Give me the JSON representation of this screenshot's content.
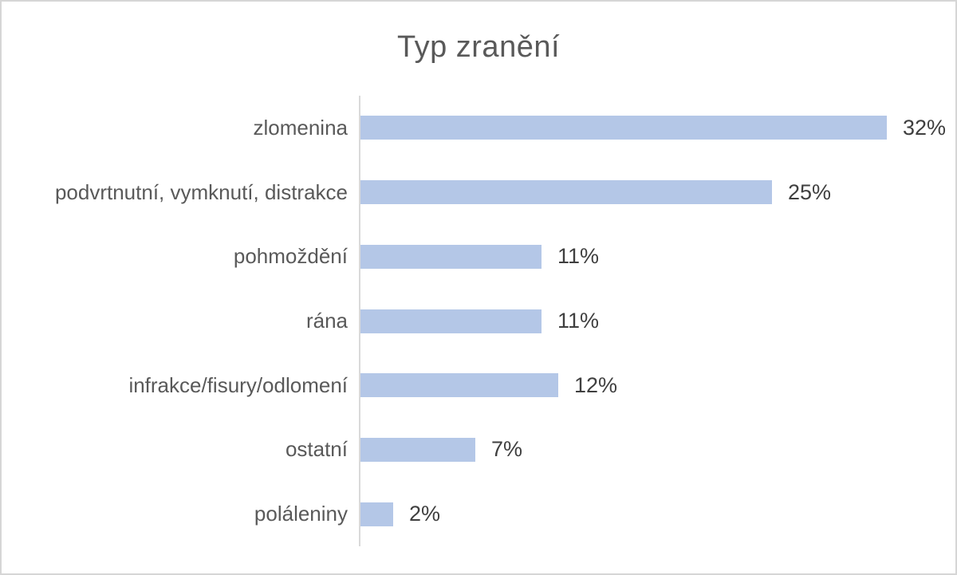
{
  "chart_data": {
    "type": "bar",
    "orientation": "horizontal",
    "title": "Typ zranění",
    "categories": [
      "zlomenina",
      "podvrtnutní, vymknutí, distrakce",
      "pohmoždění",
      "rána",
      "infrakce/fisury/odlomení",
      "ostatní",
      "poláleniny"
    ],
    "values": [
      32,
      25,
      11,
      11,
      12,
      7,
      2
    ],
    "value_labels": [
      "32%",
      "25%",
      "11%",
      "11%",
      "12%",
      "7%",
      "2%"
    ],
    "unit": "%",
    "xlabel": "",
    "ylabel": "",
    "xlim": [
      0,
      32
    ],
    "grid": false,
    "legend": false,
    "data_labels": "outside-end",
    "bar_color": "#b4c7e7",
    "axis_color": "#d9d9d9",
    "title_color": "#595959",
    "label_color": "#595959",
    "value_color": "#3f3f3f",
    "border_color": "#d6d6d6",
    "background_color": "#ffffff"
  }
}
